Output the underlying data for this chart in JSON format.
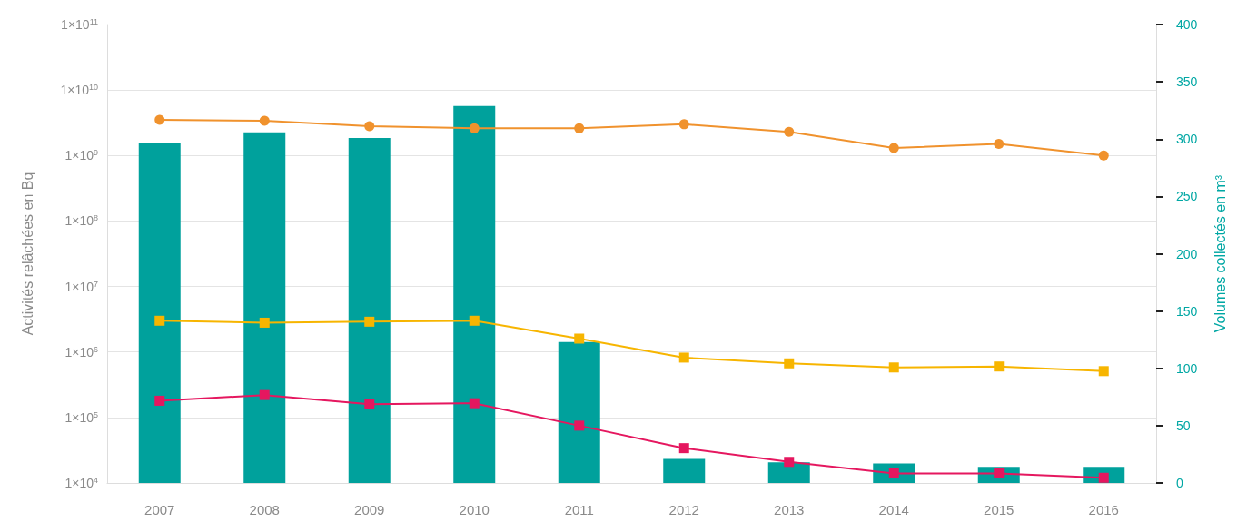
{
  "chart_data": {
    "type": "line",
    "ylabel": "Activités relâchées en Bq",
    "y2label": "Volumes collectés en m³",
    "categories": [
      "2007",
      "2008",
      "2009",
      "2010",
      "2011",
      "2012",
      "2013",
      "2014",
      "2015",
      "2016"
    ],
    "series": [
      {
        "type": "bar",
        "axis": "y2",
        "color": "#00a19c",
        "values": [
          297,
          306,
          301,
          329,
          123,
          21,
          18,
          17,
          14,
          14
        ]
      },
      {
        "marker": "circle",
        "color": "#f0922d",
        "values": [
          3500000000.0,
          3400000000.0,
          2800000000.0,
          2600000000.0,
          2600000000.0,
          3000000000.0,
          2300000000.0,
          1300000000.0,
          1500000000.0,
          1000000000.0
        ]
      },
      {
        "marker": "square",
        "color": "#f7b500",
        "values": [
          3000000.0,
          2800000.0,
          2900000.0,
          3000000.0,
          1600000.0,
          820000.0,
          670000.0,
          580000.0,
          600000.0,
          510000.0
        ]
      },
      {
        "marker": "square",
        "color": "#e5175f",
        "values": [
          180000.0,
          220000.0,
          160000.0,
          165000.0,
          75000.0,
          34000.0,
          21000.0,
          14000.0,
          14000.0,
          12000.0
        ]
      }
    ],
    "log": "y",
    "ylim": [
      10000,
      100000000000
    ],
    "yticks": [
      {
        "value": 10000,
        "label": "1×10$^{4}$"
      },
      {
        "value": 100000,
        "label": "1×10$^{5}$"
      },
      {
        "value": 1000000,
        "label": "1×10$^{6}$"
      },
      {
        "value": 10000000,
        "label": "1×10$^{7}$"
      },
      {
        "value": 100000000,
        "label": "1×10$^{8}$"
      },
      {
        "value": 1000000000,
        "label": "1×10$^{9}$"
      },
      {
        "value": 10000000000,
        "label": "1×10$^{10}$"
      },
      {
        "value": 100000000000,
        "label": "1×10$^{11}$"
      }
    ],
    "y2lim": [
      0,
      400
    ],
    "y2ticks": [
      0,
      50,
      100,
      150,
      200,
      250,
      300,
      350,
      400
    ],
    "grid": "y"
  }
}
